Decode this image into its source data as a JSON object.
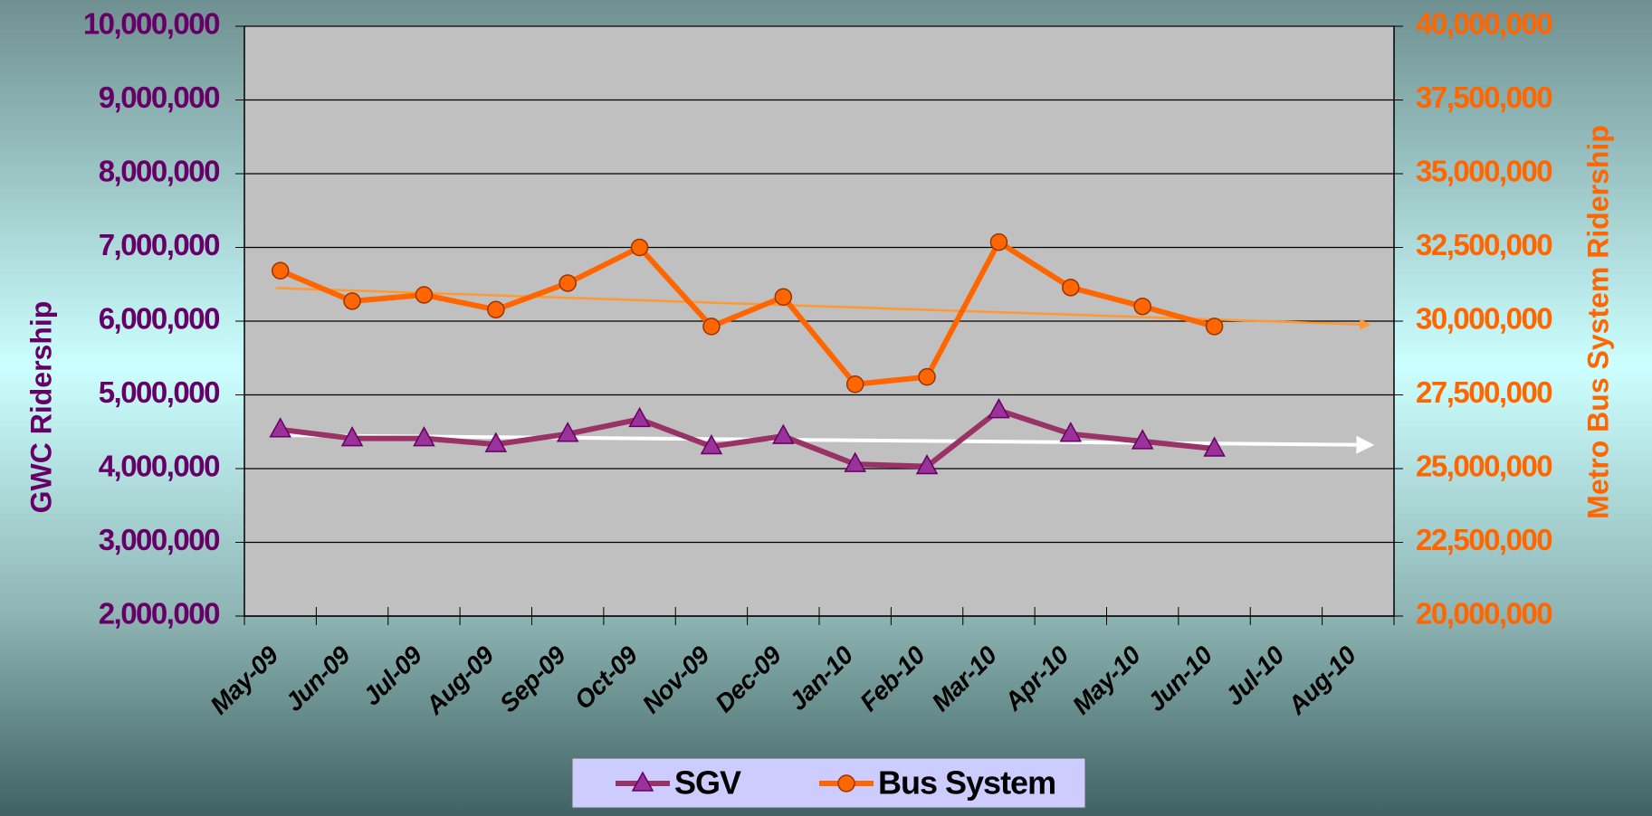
{
  "chart_data": {
    "type": "line",
    "y_label": "GWC Ridership",
    "y2_label": "Metro Bus System Ridership",
    "categories": [
      "May-09",
      "Jun-09",
      "Jul-09",
      "Aug-09",
      "Sep-09",
      "Oct-09",
      "Nov-09",
      "Dec-09",
      "Jan-10",
      "Feb-10",
      "Mar-10",
      "Apr-10",
      "May-10",
      "Jun-10",
      "Jul-10",
      "Aug-10"
    ],
    "series": [
      {
        "name": "SGV",
        "color": "#993366",
        "marker": "triangle",
        "trendline_color": "#ffffff",
        "values": [
          4530000,
          4410000,
          4410000,
          4330000,
          4470000,
          4670000,
          4300000,
          4440000,
          4060000,
          4030000,
          4790000,
          4470000,
          4370000,
          4270000,
          null,
          null
        ]
      },
      {
        "name": "Bus System",
        "color": "#ff6600",
        "marker": "circle",
        "trendline_color": "#ff9933",
        "axis": "y2",
        "values": [
          31710000,
          30680000,
          30890000,
          30390000,
          31290000,
          32500000,
          29820000,
          30820000,
          27860000,
          28110000,
          32680000,
          31140000,
          30500000,
          29820000,
          null,
          null
        ]
      }
    ],
    "ylim": [
      2000000,
      10000000
    ],
    "yticks": [
      {
        "value": 2000000,
        "label": "2,000,000"
      },
      {
        "value": 3000000,
        "label": "3,000,000"
      },
      {
        "value": 4000000,
        "label": "4,000,000"
      },
      {
        "value": 5000000,
        "label": "5,000,000"
      },
      {
        "value": 6000000,
        "label": "6,000,000"
      },
      {
        "value": 7000000,
        "label": "7,000,000"
      },
      {
        "value": 8000000,
        "label": "8,000,000"
      },
      {
        "value": 9000000,
        "label": "9,000,000"
      },
      {
        "value": 10000000,
        "label": "10,000,000"
      }
    ],
    "y2lim": [
      20000000,
      40000000
    ],
    "y2ticks": [
      {
        "value": 20000000,
        "label": "20,000,000"
      },
      {
        "value": 22500000,
        "label": "22,500,000"
      },
      {
        "value": 25000000,
        "label": "25,000,000"
      },
      {
        "value": 27500000,
        "label": "27,500,000"
      },
      {
        "value": 30000000,
        "label": "30,000,000"
      },
      {
        "value": 32500000,
        "label": "32,500,000"
      },
      {
        "value": 35000000,
        "label": "35,000,000"
      },
      {
        "value": 37500000,
        "label": "37,500,000"
      },
      {
        "value": 40000000,
        "label": "40,000,000"
      }
    ],
    "grid": true,
    "legend": "bottom",
    "y_color": "#660066",
    "y2_color": "#ff6600"
  }
}
